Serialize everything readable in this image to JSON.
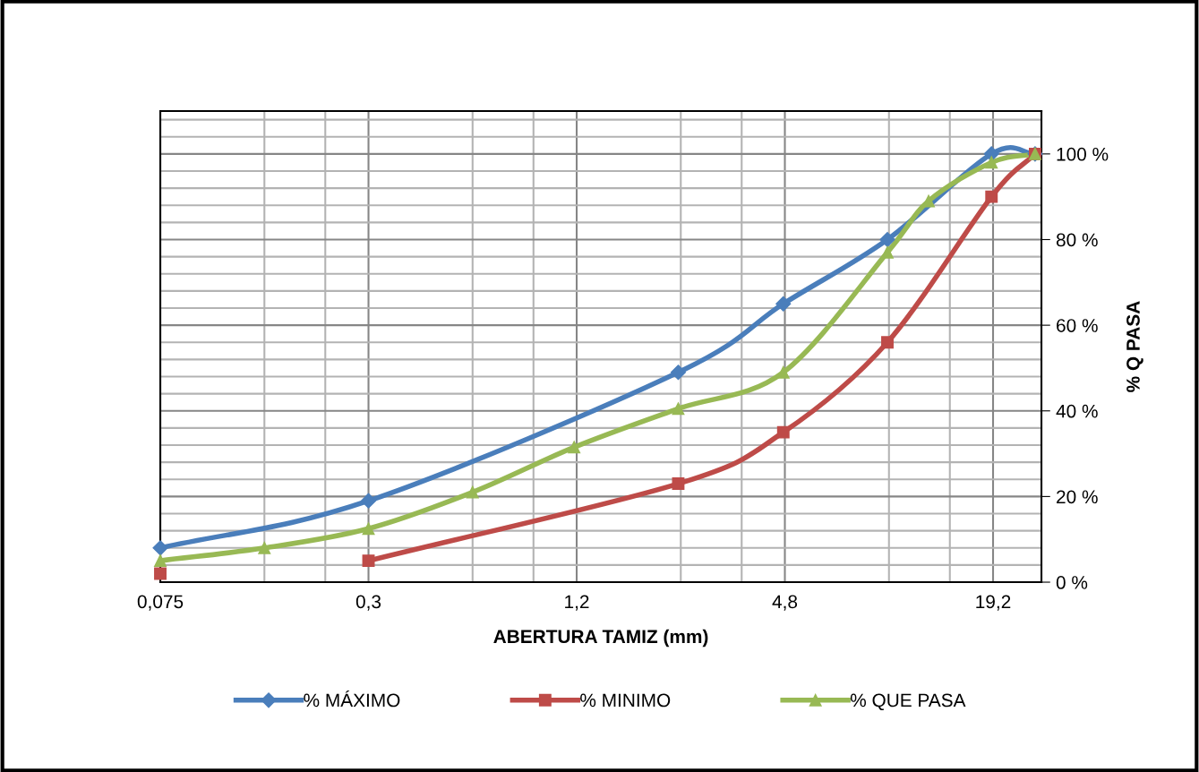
{
  "chart_data": {
    "type": "line",
    "xlabel": "ABERTURA TAMIZ (mm)",
    "ylabel": "% Q PASA",
    "series": [
      {
        "name": "% MÁXIMO",
        "color": "#4a7ebb",
        "marker": "diamond",
        "x": [
          0.075,
          0.3,
          2.36,
          4.75,
          9.5,
          19,
          25.4
        ],
        "values": [
          8,
          19,
          49,
          65,
          80,
          100,
          100
        ]
      },
      {
        "name": "% MINIMO",
        "color": "#be4b48",
        "marker": "square",
        "x": [
          0.075,
          0.15,
          0.3,
          2.36,
          4.75,
          9.5,
          19,
          25.4
        ],
        "values": [
          2,
          null,
          5,
          23,
          35,
          56,
          90,
          100
        ]
      },
      {
        "name": "% QUE PASA",
        "color": "#98b954",
        "marker": "triangle",
        "x": [
          0.075,
          0.15,
          0.3,
          0.6,
          1.18,
          2.36,
          4.75,
          9.5,
          12.5,
          19,
          25.4
        ],
        "values": [
          5,
          8,
          12.5,
          21,
          31.5,
          40.5,
          49,
          77,
          89,
          98,
          100
        ]
      }
    ],
    "log": "x",
    "xlim": [
      0.075,
      26.5
    ],
    "xticks": [
      {
        "value": 0.075,
        "label": "0,075"
      },
      {
        "value": 0.15,
        "label": null
      },
      {
        "value": 0.225,
        "label": null
      },
      {
        "value": 0.3,
        "label": "0,3"
      },
      {
        "value": 0.6,
        "label": null
      },
      {
        "value": 0.9,
        "label": null
      },
      {
        "value": 1.2,
        "label": "1,2"
      },
      {
        "value": 2.4,
        "label": null
      },
      {
        "value": 3.6,
        "label": null
      },
      {
        "value": 4.8,
        "label": "4,8"
      },
      {
        "value": 9.6,
        "label": null
      },
      {
        "value": 14.4,
        "label": null
      },
      {
        "value": 19.2,
        "label": "19,2"
      }
    ],
    "ylim": [
      0,
      110
    ],
    "yticks": [
      {
        "value": 0,
        "label": "0 %"
      },
      {
        "value": 4,
        "label": null
      },
      {
        "value": 8,
        "label": null
      },
      {
        "value": 12,
        "label": null
      },
      {
        "value": 16,
        "label": null
      },
      {
        "value": 20,
        "label": "20 %"
      },
      {
        "value": 24,
        "label": null
      },
      {
        "value": 28,
        "label": null
      },
      {
        "value": 32,
        "label": null
      },
      {
        "value": 36,
        "label": null
      },
      {
        "value": 40,
        "label": "40 %"
      },
      {
        "value": 44,
        "label": null
      },
      {
        "value": 48,
        "label": null
      },
      {
        "value": 52,
        "label": null
      },
      {
        "value": 56,
        "label": null
      },
      {
        "value": 60,
        "label": "60 %"
      },
      {
        "value": 64,
        "label": null
      },
      {
        "value": 68,
        "label": null
      },
      {
        "value": 72,
        "label": null
      },
      {
        "value": 76,
        "label": null
      },
      {
        "value": 80,
        "label": "80 %"
      },
      {
        "value": 84,
        "label": null
      },
      {
        "value": 88,
        "label": null
      },
      {
        "value": 92,
        "label": null
      },
      {
        "value": 96,
        "label": null
      },
      {
        "value": 100,
        "label": "100 %"
      },
      {
        "value": 104,
        "label": null
      },
      {
        "value": 108,
        "label": null
      }
    ],
    "grid": true,
    "legend": "bottom",
    "line_style": "solid"
  }
}
